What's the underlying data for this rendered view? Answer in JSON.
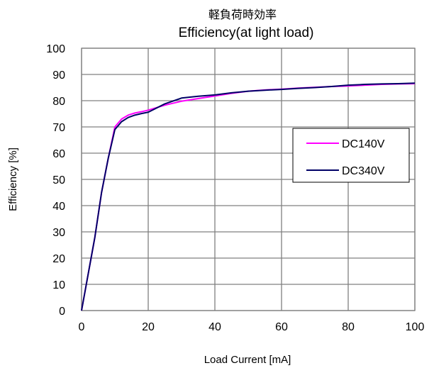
{
  "chart_data": {
    "type": "line",
    "title_jp": "軽負荷時効率",
    "title": "Efficiency(at light load)",
    "xlabel": "Load Current [mA]",
    "ylabel": "Efficiency [%]",
    "xlim": [
      0,
      100
    ],
    "ylim": [
      0,
      100
    ],
    "x_ticks": [
      0,
      20,
      40,
      60,
      80,
      100
    ],
    "y_ticks": [
      0,
      10,
      20,
      30,
      40,
      50,
      60,
      70,
      80,
      90,
      100
    ],
    "grid": true,
    "legend_position": "right",
    "series": [
      {
        "name": "DC140V",
        "color": "#ff00ff",
        "points": [
          [
            0,
            0
          ],
          [
            2,
            14
          ],
          [
            4,
            28
          ],
          [
            6,
            45
          ],
          [
            8,
            58
          ],
          [
            10,
            70
          ],
          [
            12,
            73
          ],
          [
            14,
            74.5
          ],
          [
            16,
            75.3
          ],
          [
            18,
            75.8
          ],
          [
            20,
            76.4
          ],
          [
            25,
            78.3
          ],
          [
            30,
            79.8
          ],
          [
            35,
            80.8
          ],
          [
            40,
            81.8
          ],
          [
            45,
            82.8
          ],
          [
            50,
            83.6
          ],
          [
            55,
            84.1
          ],
          [
            60,
            84.4
          ],
          [
            65,
            84.8
          ],
          [
            70,
            85.1
          ],
          [
            75,
            85.4
          ],
          [
            80,
            85.6
          ],
          [
            85,
            85.9
          ],
          [
            90,
            86.2
          ],
          [
            95,
            86.4
          ],
          [
            100,
            86.5
          ]
        ]
      },
      {
        "name": "DC340V",
        "color": "#000066",
        "points": [
          [
            0,
            0
          ],
          [
            2,
            14
          ],
          [
            4,
            28
          ],
          [
            6,
            45
          ],
          [
            8,
            58
          ],
          [
            10,
            69
          ],
          [
            12,
            72
          ],
          [
            14,
            73.6
          ],
          [
            16,
            74.5
          ],
          [
            18,
            75.1
          ],
          [
            20,
            75.6
          ],
          [
            25,
            78.8
          ],
          [
            30,
            81
          ],
          [
            35,
            81.7
          ],
          [
            40,
            82.2
          ],
          [
            45,
            83
          ],
          [
            50,
            83.6
          ],
          [
            55,
            84
          ],
          [
            60,
            84.3
          ],
          [
            65,
            84.7
          ],
          [
            70,
            85
          ],
          [
            75,
            85.4
          ],
          [
            80,
            85.9
          ],
          [
            85,
            86.2
          ],
          [
            90,
            86.4
          ],
          [
            95,
            86.5
          ],
          [
            100,
            86.7
          ]
        ]
      }
    ]
  }
}
